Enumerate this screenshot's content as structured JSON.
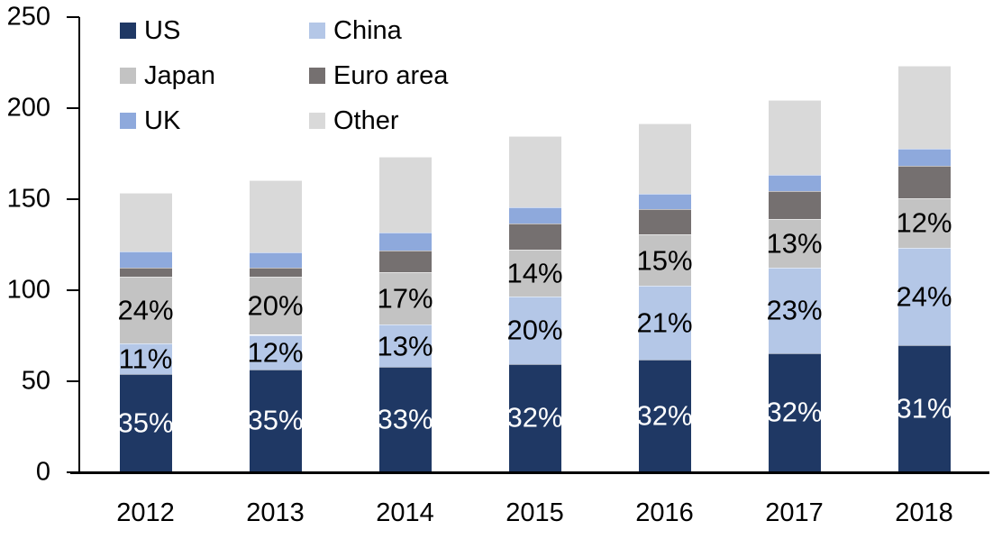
{
  "chart_data": {
    "type": "bar",
    "stacked": true,
    "title": "",
    "categories": [
      "2012",
      "2013",
      "2014",
      "2015",
      "2016",
      "2017",
      "2018"
    ],
    "stack_order": "bottom-to-top",
    "series": [
      {
        "name": "US",
        "color": "#1F3864",
        "values": [
          53.5,
          56,
          57.5,
          59,
          61.5,
          65,
          69.5
        ],
        "labels": [
          "35%",
          "35%",
          "33%",
          "32%",
          "32%",
          "32%",
          "31%"
        ],
        "label_color": "#FFFFFF"
      },
      {
        "name": "China",
        "color": "#B4C7E7",
        "values": [
          17,
          19,
          23,
          37,
          40.5,
          47,
          53.5
        ],
        "labels": [
          "11%",
          "12%",
          "13%",
          "20%",
          "21%",
          "23%",
          "24%"
        ],
        "label_color": "#000000"
      },
      {
        "name": "Japan",
        "color": "#C3C3C3",
        "values": [
          36.5,
          32,
          29,
          26,
          28,
          26.5,
          27
        ],
        "labels": [
          "24%",
          "20%",
          "17%",
          "14%",
          "15%",
          "13%",
          "12%"
        ],
        "label_color": "#000000"
      },
      {
        "name": "Euro area",
        "color": "#757070",
        "values": [
          5,
          5,
          12,
          14,
          14,
          15.5,
          18
        ]
      },
      {
        "name": "UK",
        "color": "#8EA9DC",
        "values": [
          9,
          8.5,
          9.5,
          9,
          8.5,
          9,
          9
        ]
      },
      {
        "name": "Other",
        "color": "#D9D9D9",
        "values": [
          32,
          39.5,
          42,
          39,
          38.5,
          41,
          46
        ]
      }
    ],
    "totals": [
      153,
      160,
      173,
      184,
      191,
      204,
      223
    ],
    "y_axis": {
      "min": 0,
      "max": 250,
      "tick_step": 50,
      "ticks": [
        "0",
        "50",
        "100",
        "150",
        "200",
        "250"
      ]
    },
    "x_axis": {
      "ticks": [
        "2012",
        "2013",
        "2014",
        "2015",
        "2016",
        "2017",
        "2018"
      ]
    },
    "legend": {
      "position": "top-left",
      "columns": 2,
      "entries": [
        "US",
        "China",
        "Japan",
        "Euro area",
        "UK",
        "Other"
      ]
    },
    "colors": {
      "axis": "#000000",
      "background": "#FFFFFF"
    },
    "grid": false
  }
}
